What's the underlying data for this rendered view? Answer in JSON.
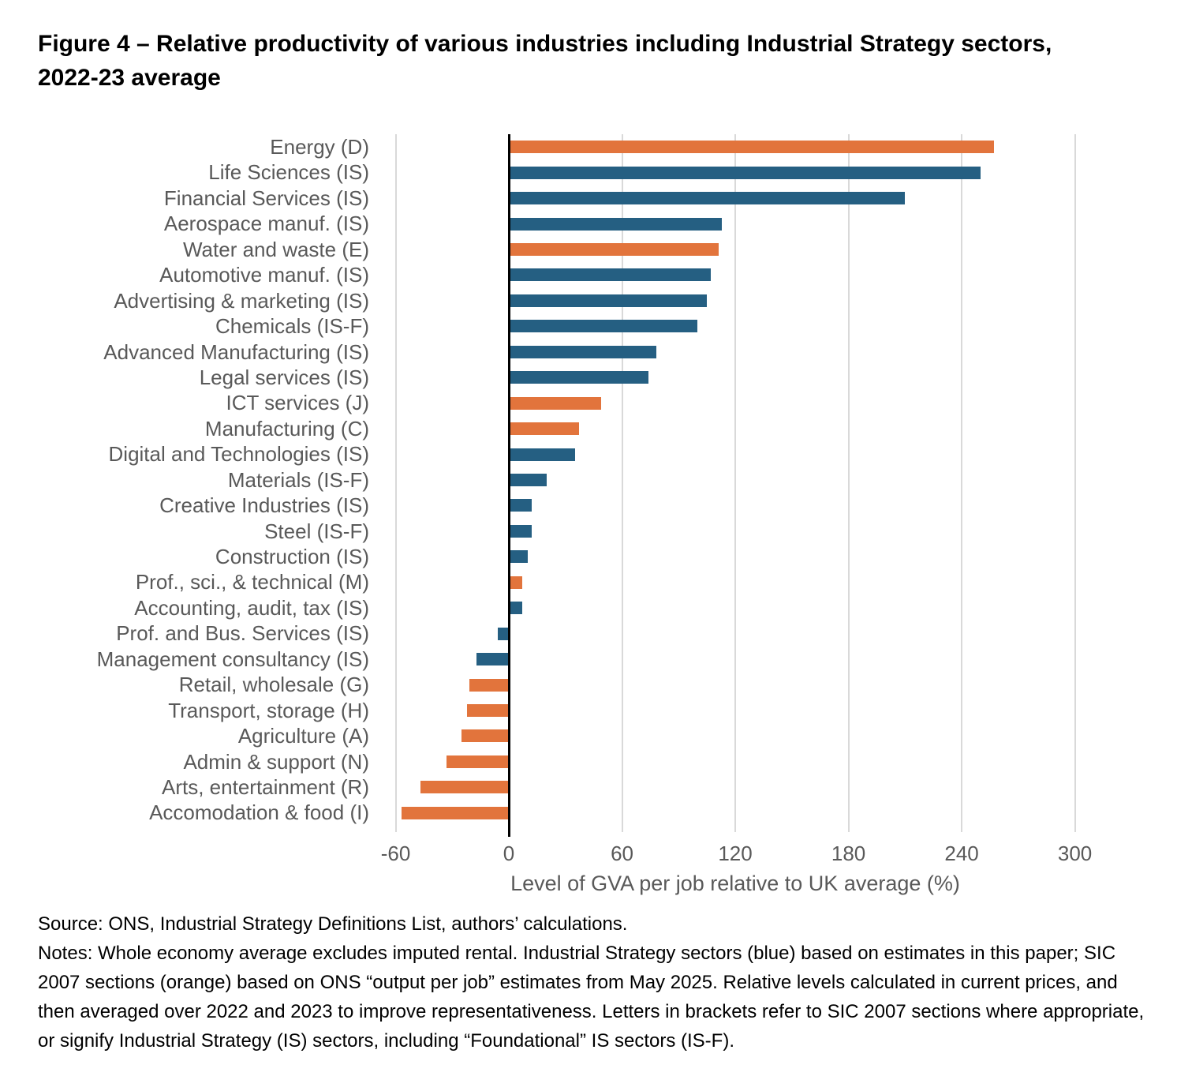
{
  "title": "Figure 4 – Relative productivity of various industries including Industrial Strategy sectors, 2022-23 average",
  "chart_data": {
    "type": "bar",
    "orientation": "horizontal",
    "title": "Figure 4 – Relative productivity of various industries including Industrial Strategy sectors, 2022-23 average",
    "xlabel": "Level of GVA per job relative to UK average (%)",
    "ylabel": "",
    "xlim": [
      -69,
      324
    ],
    "xticks": [
      -60,
      0,
      60,
      120,
      180,
      240,
      300
    ],
    "grid": "vertical-only",
    "legend": "none (color-coded: blue = Industrial Strategy sectors, orange = SIC 2007 sections)",
    "colors": {
      "blue": "#255f82",
      "orange": "#e2743c"
    },
    "bars": [
      {
        "label": "Energy (D)",
        "value": 257,
        "group": "orange"
      },
      {
        "label": "Life Sciences (IS)",
        "value": 250,
        "group": "blue"
      },
      {
        "label": "Financial Services (IS)",
        "value": 210,
        "group": "blue"
      },
      {
        "label": "Aerospace manuf. (IS)",
        "value": 113,
        "group": "blue"
      },
      {
        "label": "Water and waste (E)",
        "value": 111,
        "group": "orange"
      },
      {
        "label": "Automotive manuf. (IS)",
        "value": 107,
        "group": "blue"
      },
      {
        "label": "Advertising & marketing (IS)",
        "value": 105,
        "group": "blue"
      },
      {
        "label": "Chemicals (IS-F)",
        "value": 100,
        "group": "blue"
      },
      {
        "label": "Advanced Manufacturing (IS)",
        "value": 78,
        "group": "blue"
      },
      {
        "label": "Legal services (IS)",
        "value": 74,
        "group": "blue"
      },
      {
        "label": "ICT services (J)",
        "value": 49,
        "group": "orange"
      },
      {
        "label": "Manufacturing (C)",
        "value": 37,
        "group": "orange"
      },
      {
        "label": "Digital and Technologies (IS)",
        "value": 35,
        "group": "blue"
      },
      {
        "label": "Materials (IS-F)",
        "value": 20,
        "group": "blue"
      },
      {
        "label": "Creative Industries (IS)",
        "value": 12,
        "group": "blue"
      },
      {
        "label": "Steel (IS-F)",
        "value": 12,
        "group": "blue"
      },
      {
        "label": "Construction (IS)",
        "value": 10,
        "group": "blue"
      },
      {
        "label": "Prof., sci., & technical (M)",
        "value": 7,
        "group": "orange"
      },
      {
        "label": "Accounting, audit, tax (IS)",
        "value": 7,
        "group": "blue"
      },
      {
        "label": "Prof. and Bus. Services (IS)",
        "value": -6,
        "group": "blue"
      },
      {
        "label": "Management consultancy (IS)",
        "value": -17,
        "group": "blue"
      },
      {
        "label": "Retail, wholesale (G)",
        "value": -21,
        "group": "orange"
      },
      {
        "label": "Transport, storage (H)",
        "value": -22,
        "group": "orange"
      },
      {
        "label": "Agriculture (A)",
        "value": -25,
        "group": "orange"
      },
      {
        "label": "Admin & support (N)",
        "value": -33,
        "group": "orange"
      },
      {
        "label": "Arts, entertainment (R)",
        "value": -47,
        "group": "orange"
      },
      {
        "label": "Accomodation & food (I)",
        "value": -57,
        "group": "orange"
      }
    ]
  },
  "footer": {
    "source": "Source: ONS, Industrial Strategy Definitions List, authors’ calculations.",
    "notes": "Notes: Whole economy average excludes imputed rental. Industrial Strategy sectors (blue) based on estimates in this paper; SIC 2007 sections (orange) based on ONS “output per job” estimates from May 2025. Relative levels calculated in current prices, and then averaged over 2022 and 2023 to improve representativeness. Letters in brackets refer to SIC 2007 sections where appropriate, or signify Industrial Strategy (IS) sectors, including “Foundational” IS sectors (IS-F)."
  }
}
